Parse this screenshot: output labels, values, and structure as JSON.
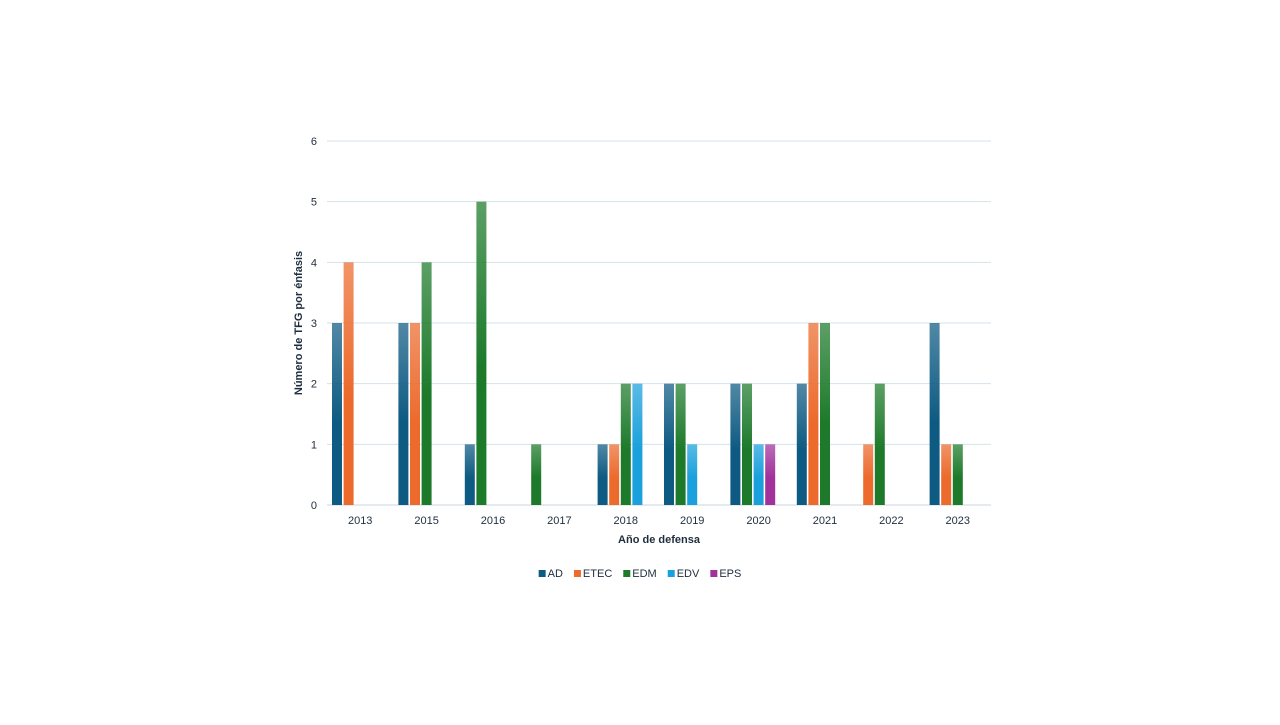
{
  "chart_data": {
    "type": "bar",
    "xlabel": "Año de defensa",
    "ylabel": "Número de TFG por énfasis",
    "ylim": [
      0,
      6
    ],
    "yticks": [
      0,
      1,
      2,
      3,
      4,
      5,
      6
    ],
    "grid": true,
    "legend_position": "bottom",
    "categories": [
      "2013",
      "2015",
      "2016",
      "2017",
      "2018",
      "2019",
      "2020",
      "2021",
      "2022",
      "2023"
    ],
    "series": [
      {
        "name": "AD",
        "color": "#0d5a82",
        "values": [
          3,
          3,
          1,
          0,
          1,
          2,
          2,
          2,
          0,
          3
        ]
      },
      {
        "name": "ETEC",
        "color": "#ec6a2c",
        "values": [
          4,
          3,
          0,
          0,
          1,
          0,
          0,
          3,
          1,
          1
        ]
      },
      {
        "name": "EDM",
        "color": "#1c7a2a",
        "values": [
          0,
          4,
          5,
          1,
          2,
          2,
          2,
          3,
          2,
          1
        ]
      },
      {
        "name": "EDV",
        "color": "#1aa0dc",
        "values": [
          0,
          0,
          0,
          0,
          2,
          1,
          1,
          0,
          0,
          0
        ]
      },
      {
        "name": "EPS",
        "color": "#a1329c",
        "values": [
          0,
          0,
          0,
          0,
          0,
          0,
          1,
          0,
          0,
          0
        ]
      }
    ]
  }
}
